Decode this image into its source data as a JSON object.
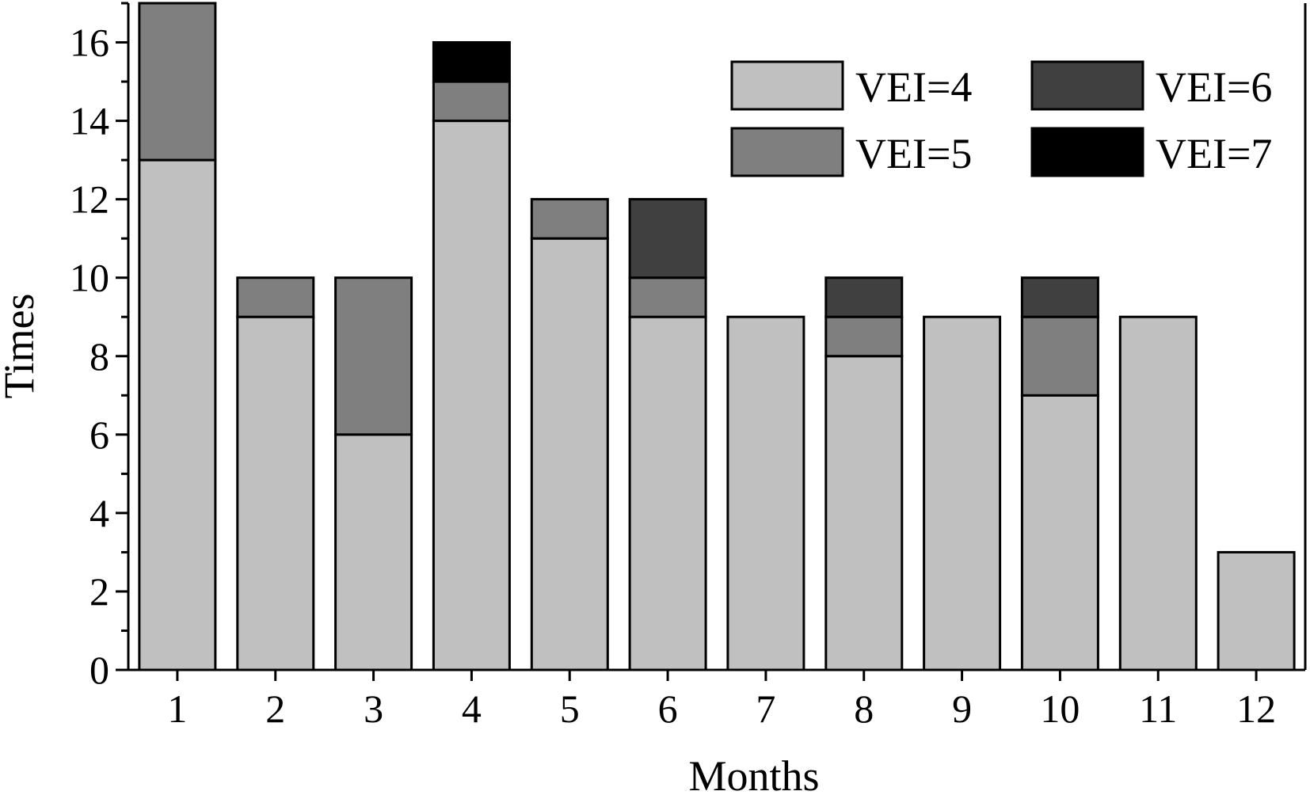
{
  "chart_data": {
    "type": "bar",
    "stacked": true,
    "xlabel": "Months",
    "ylabel": "Times",
    "categories": [
      "1",
      "2",
      "3",
      "4",
      "5",
      "6",
      "7",
      "8",
      "9",
      "10",
      "11",
      "12"
    ],
    "ylim": [
      0,
      17
    ],
    "yticks": [
      0,
      2,
      4,
      6,
      8,
      10,
      12,
      14,
      16
    ],
    "legend_position": "top-right",
    "grid": false,
    "series": [
      {
        "name": "VEI=4",
        "color": "#c0c0c0",
        "values": [
          13,
          9,
          6,
          14,
          11,
          9,
          9,
          8,
          9,
          7,
          9,
          3
        ]
      },
      {
        "name": "VEI=5",
        "color": "#7f7f7f",
        "values": [
          4,
          1,
          4,
          1,
          1,
          1,
          0,
          1,
          0,
          2,
          0,
          0
        ]
      },
      {
        "name": "VEI=6",
        "color": "#404040",
        "values": [
          0,
          0,
          0,
          0,
          0,
          2,
          0,
          1,
          0,
          1,
          0,
          0
        ]
      },
      {
        "name": "VEI=7",
        "color": "#000000",
        "values": [
          0,
          0,
          0,
          1,
          0,
          0,
          0,
          0,
          0,
          0,
          0,
          0
        ]
      }
    ]
  }
}
